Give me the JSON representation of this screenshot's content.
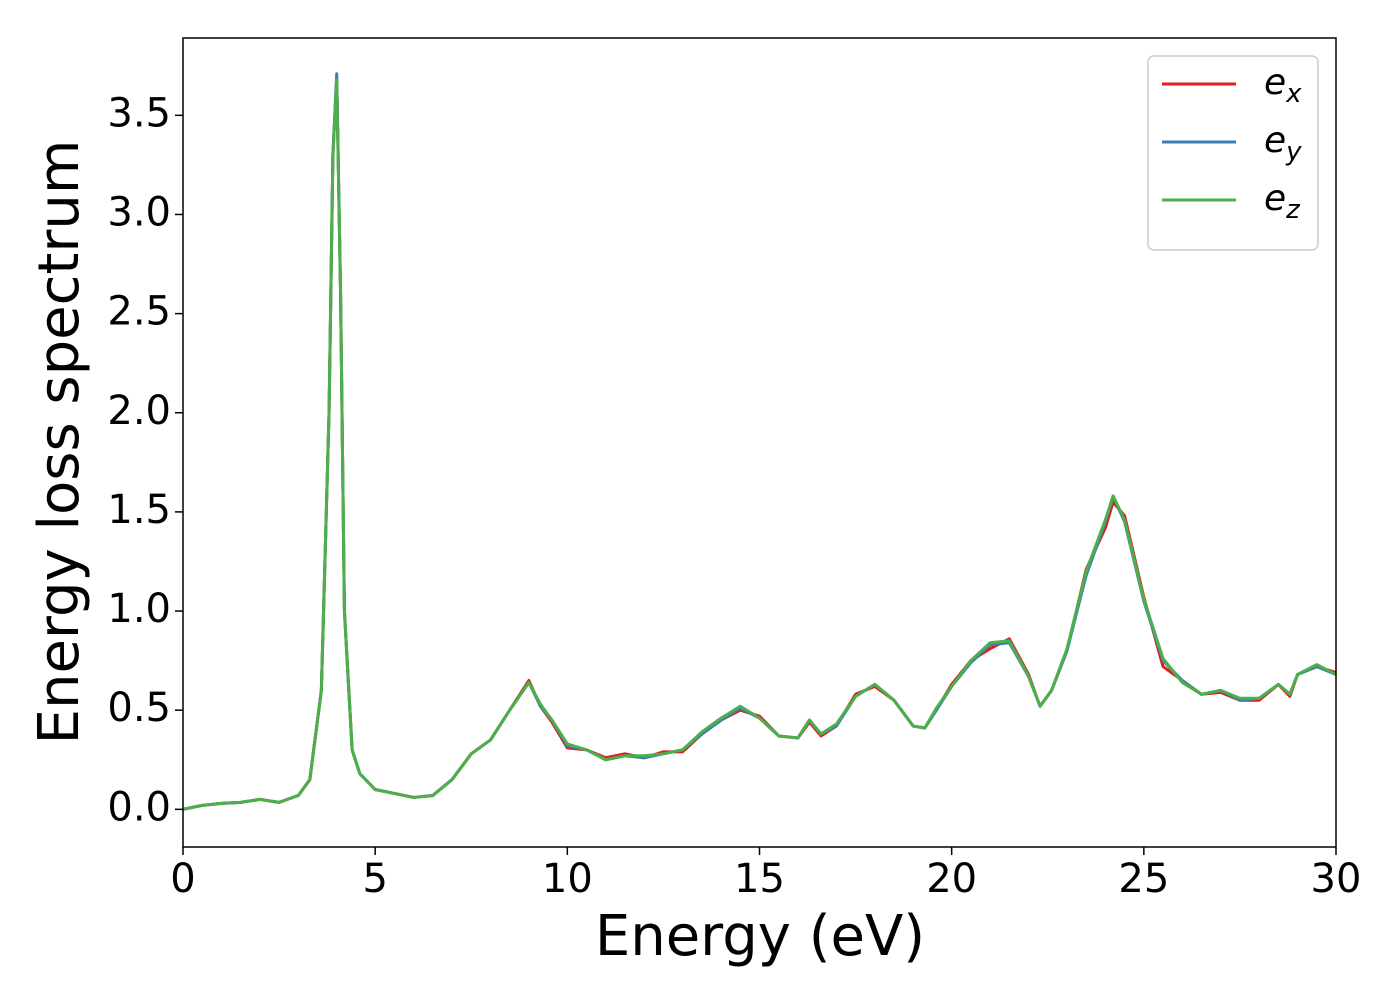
{
  "chart_data": {
    "type": "line",
    "xlabel": "Energy (eV)",
    "ylabel": "Energy loss spectrum",
    "xlim": [
      0,
      30
    ],
    "ylim": [
      -0.19,
      3.89
    ],
    "xticks": [
      0,
      5,
      10,
      15,
      20,
      25,
      30
    ],
    "yticks": [
      {
        "value": 0,
        "label": "0.0"
      },
      0.5,
      {
        "value": 1,
        "label": "1.0"
      },
      1.5,
      {
        "value": 2,
        "label": "2.0"
      },
      2.5,
      {
        "value": 3,
        "label": "3.0"
      },
      3.5
    ],
    "legend": "upper right",
    "x": [
      0,
      0.5,
      1,
      1.5,
      2,
      2.5,
      3,
      3.3,
      3.6,
      3.8,
      3.9,
      4.0,
      4.1,
      4.2,
      4.4,
      4.6,
      5,
      5.5,
      6,
      6.5,
      7,
      7.5,
      8,
      8.5,
      9,
      9.3,
      9.6,
      10,
      10.5,
      11,
      11.5,
      12,
      12.5,
      13,
      13.5,
      14,
      14.5,
      15,
      15.5,
      16,
      16.3,
      16.6,
      17,
      17.5,
      18,
      18.5,
      19,
      19.3,
      19.6,
      20,
      20.5,
      21,
      21.5,
      22,
      22.3,
      22.6,
      23,
      23.5,
      24,
      24.2,
      24.5,
      25,
      25.5,
      26,
      26.5,
      27,
      27.5,
      28,
      28.5,
      28.8,
      29,
      29.5,
      30
    ],
    "series": [
      {
        "name": "e_x",
        "color": "#e41a1c",
        "values": [
          0,
          0.02,
          0.03,
          0.035,
          0.05,
          0.035,
          0.07,
          0.15,
          0.6,
          2.0,
          3.3,
          3.69,
          2.6,
          1.0,
          0.3,
          0.18,
          0.1,
          0.08,
          0.06,
          0.07,
          0.15,
          0.28,
          0.35,
          0.5,
          0.65,
          0.52,
          0.44,
          0.31,
          0.3,
          0.26,
          0.28,
          0.26,
          0.29,
          0.29,
          0.38,
          0.45,
          0.5,
          0.47,
          0.37,
          0.36,
          0.44,
          0.37,
          0.42,
          0.58,
          0.62,
          0.55,
          0.42,
          0.41,
          0.5,
          0.63,
          0.75,
          0.81,
          0.86,
          0.68,
          0.52,
          0.6,
          0.8,
          1.21,
          1.42,
          1.55,
          1.48,
          1.07,
          0.72,
          0.65,
          0.58,
          0.59,
          0.55,
          0.55,
          0.63,
          0.57,
          0.68,
          0.72,
          0.69
        ]
      },
      {
        "name": "e_y",
        "color": "#377eb8",
        "values": [
          0,
          0.02,
          0.03,
          0.035,
          0.05,
          0.035,
          0.07,
          0.15,
          0.6,
          2.0,
          3.3,
          3.71,
          2.6,
          1.0,
          0.3,
          0.18,
          0.1,
          0.08,
          0.06,
          0.07,
          0.15,
          0.28,
          0.35,
          0.5,
          0.64,
          0.52,
          0.45,
          0.32,
          0.3,
          0.25,
          0.27,
          0.26,
          0.28,
          0.3,
          0.38,
          0.45,
          0.51,
          0.46,
          0.37,
          0.36,
          0.45,
          0.38,
          0.42,
          0.57,
          0.63,
          0.55,
          0.42,
          0.41,
          0.5,
          0.62,
          0.74,
          0.83,
          0.84,
          0.67,
          0.52,
          0.6,
          0.8,
          1.18,
          1.45,
          1.58,
          1.45,
          1.05,
          0.75,
          0.65,
          0.58,
          0.6,
          0.55,
          0.56,
          0.63,
          0.58,
          0.68,
          0.72,
          0.68
        ]
      },
      {
        "name": "e_z",
        "color": "#4daf4a",
        "values": [
          0,
          0.02,
          0.03,
          0.035,
          0.05,
          0.035,
          0.07,
          0.15,
          0.6,
          2.0,
          3.3,
          3.68,
          2.6,
          1.0,
          0.3,
          0.18,
          0.1,
          0.08,
          0.06,
          0.07,
          0.15,
          0.28,
          0.35,
          0.5,
          0.64,
          0.53,
          0.45,
          0.33,
          0.3,
          0.25,
          0.27,
          0.27,
          0.28,
          0.3,
          0.39,
          0.46,
          0.52,
          0.46,
          0.37,
          0.36,
          0.45,
          0.38,
          0.43,
          0.57,
          0.63,
          0.55,
          0.42,
          0.41,
          0.51,
          0.62,
          0.75,
          0.84,
          0.85,
          0.67,
          0.52,
          0.6,
          0.81,
          1.2,
          1.46,
          1.58,
          1.46,
          1.06,
          0.76,
          0.64,
          0.58,
          0.6,
          0.56,
          0.56,
          0.63,
          0.58,
          0.68,
          0.73,
          0.68
        ]
      }
    ]
  }
}
